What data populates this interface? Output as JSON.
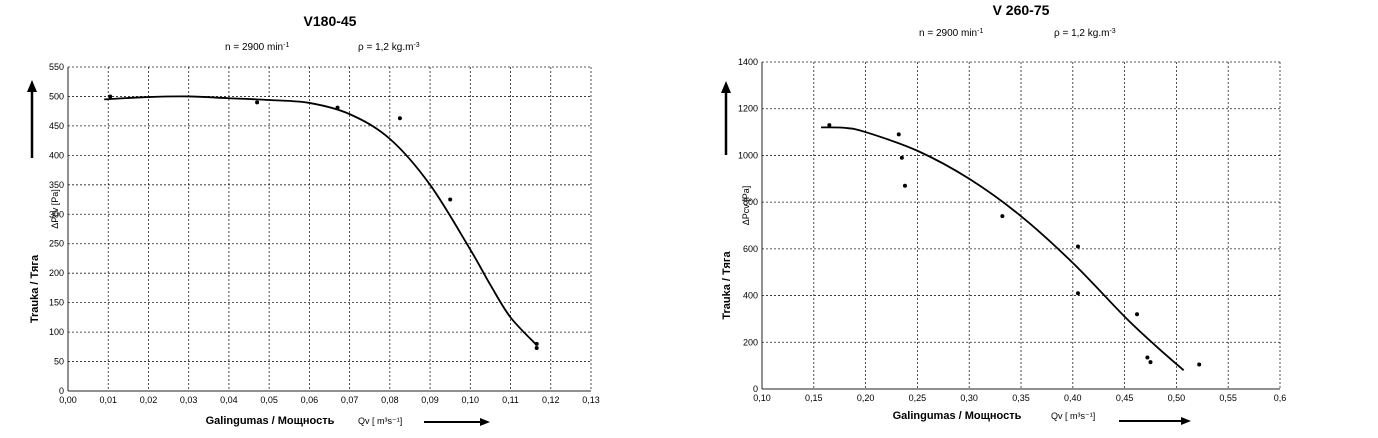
{
  "chart_data": [
    {
      "type": "line",
      "title": "V180-45",
      "params": {
        "speed": "n = 2900 min",
        "speed_sup": "-1",
        "density": "ρ = 1,2 kg.m",
        "density_sup": "-3"
      },
      "ylabel": "Trauka / Тяга",
      "ylabel_unit": "ΔPcv [Pa]",
      "xlabel": "Galingumas / Мощность",
      "xlabel_unit": "Qv [ m³s⁻¹]",
      "xlim": [
        0,
        0.13
      ],
      "ylim": [
        0,
        550
      ],
      "x_ticks": [
        "0,00",
        "0,01",
        "0,02",
        "0,03",
        "0,04",
        "0,05",
        "0,06",
        "0,07",
        "0,08",
        "0,09",
        "0,10",
        "0,11",
        "0,12",
        "0,13"
      ],
      "y_ticks": [
        "0",
        "50",
        "100",
        "150",
        "200",
        "250",
        "300",
        "350",
        "400",
        "450",
        "500",
        "550"
      ],
      "grid": true,
      "series": [
        {
          "kind": "curve",
          "x": [
            0.009,
            0.02,
            0.03,
            0.04,
            0.05,
            0.06,
            0.07,
            0.08,
            0.09,
            0.1,
            0.105,
            0.11,
            0.1165
          ],
          "y": [
            495,
            499,
            500,
            497,
            494,
            489,
            470,
            428,
            350,
            240,
            180,
            125,
            78
          ]
        },
        {
          "kind": "points",
          "x": [
            0.0105,
            0.047,
            0.067,
            0.0825,
            0.095,
            0.1165,
            0.1165
          ],
          "y": [
            500,
            490,
            481,
            463,
            325,
            80,
            73
          ]
        }
      ]
    },
    {
      "type": "line",
      "title": "V 260-75",
      "params": {
        "speed": "n = 2900 min",
        "speed_sup": "-1",
        "density": "ρ = 1,2 kg.m",
        "density_sup": "-3"
      },
      "ylabel": "Trauka / Тяга",
      "ylabel_unit": "ΔPcv [Pa]",
      "xlabel": "Galingumas / Мощность",
      "xlabel_unit": "Qv [ m³s⁻¹]",
      "xlim": [
        0.1,
        0.6
      ],
      "ylim": [
        0,
        1400
      ],
      "x_ticks": [
        "0,10",
        "0,15",
        "0,20",
        "0,25",
        "0,30",
        "0,35",
        "0,40",
        "0,45",
        "0,50",
        "0,55",
        "0,6"
      ],
      "y_ticks": [
        "0",
        "200",
        "400",
        "600",
        "800",
        "1000",
        "1200",
        "1400"
      ],
      "grid": true,
      "series": [
        {
          "kind": "curve",
          "x": [
            0.157,
            0.18,
            0.2,
            0.25,
            0.3,
            0.35,
            0.4,
            0.45,
            0.48,
            0.507
          ],
          "y": [
            1120,
            1118,
            1100,
            1020,
            900,
            740,
            540,
            310,
            185,
            80
          ]
        },
        {
          "kind": "points",
          "x": [
            0.165,
            0.232,
            0.235,
            0.238,
            0.332,
            0.405,
            0.405,
            0.462,
            0.472,
            0.475,
            0.522
          ],
          "y": [
            1130,
            1090,
            990,
            870,
            740,
            610,
            410,
            320,
            135,
            115,
            105
          ]
        }
      ]
    }
  ]
}
